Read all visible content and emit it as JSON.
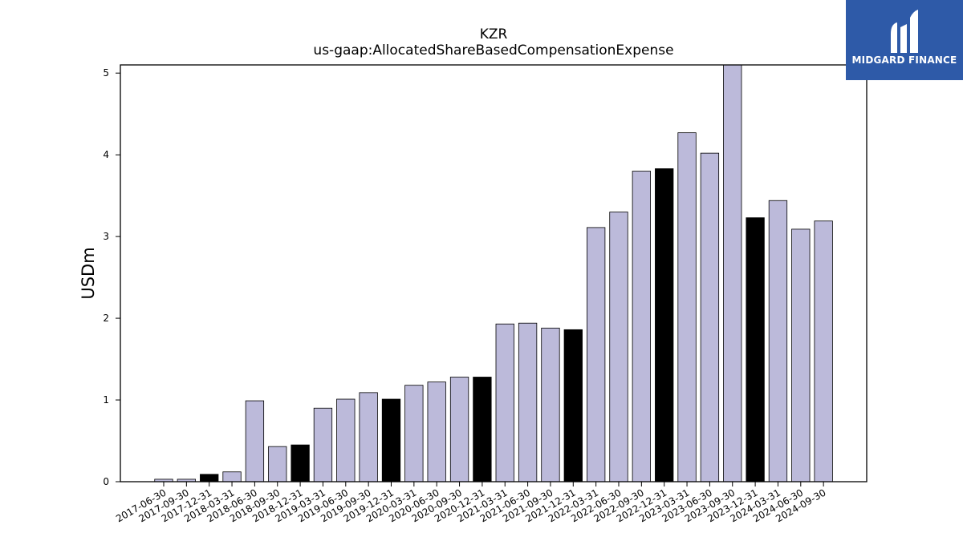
{
  "brand": {
    "name": "MIDGARD FINANCE"
  },
  "colors": {
    "bar_default": "#bcbada",
    "bar_highlight": "#000000",
    "logo_bg": "#2e5aa8"
  },
  "chart_data": {
    "type": "bar",
    "title": "KZR",
    "subtitle": "us-gaap:AllocatedShareBasedCompensationExpense",
    "xlabel": "",
    "ylabel": "USDm",
    "ylim": [
      0,
      5.1
    ],
    "yticks": [
      0,
      1,
      2,
      3,
      4,
      5
    ],
    "grid": false,
    "categories": [
      "2017-06-30",
      "2017-09-30",
      "2017-12-31",
      "2018-03-31",
      "2018-06-30",
      "2018-09-30",
      "2018-12-31",
      "2019-03-31",
      "2019-06-30",
      "2019-09-30",
      "2019-12-31",
      "2020-03-31",
      "2020-06-30",
      "2020-09-30",
      "2020-12-31",
      "2021-03-31",
      "2021-06-30",
      "2021-09-30",
      "2021-12-31",
      "2022-03-31",
      "2022-06-30",
      "2022-09-30",
      "2022-12-31",
      "2023-03-31",
      "2023-06-30",
      "2023-09-30",
      "2023-12-31",
      "2024-03-31",
      "2024-06-30",
      "2024-09-30"
    ],
    "values": [
      0.03,
      0.03,
      0.09,
      0.12,
      0.99,
      0.43,
      0.45,
      0.9,
      1.01,
      1.09,
      1.01,
      1.18,
      1.22,
      1.28,
      1.28,
      1.93,
      1.94,
      1.88,
      1.86,
      3.11,
      3.3,
      3.8,
      3.83,
      4.27,
      4.02,
      5.12,
      3.23,
      3.44,
      3.09,
      3.19
    ],
    "highlighted": [
      false,
      false,
      true,
      false,
      false,
      false,
      true,
      false,
      false,
      false,
      true,
      false,
      false,
      false,
      true,
      false,
      false,
      false,
      true,
      false,
      false,
      false,
      true,
      false,
      false,
      false,
      true,
      false,
      false,
      false
    ]
  }
}
